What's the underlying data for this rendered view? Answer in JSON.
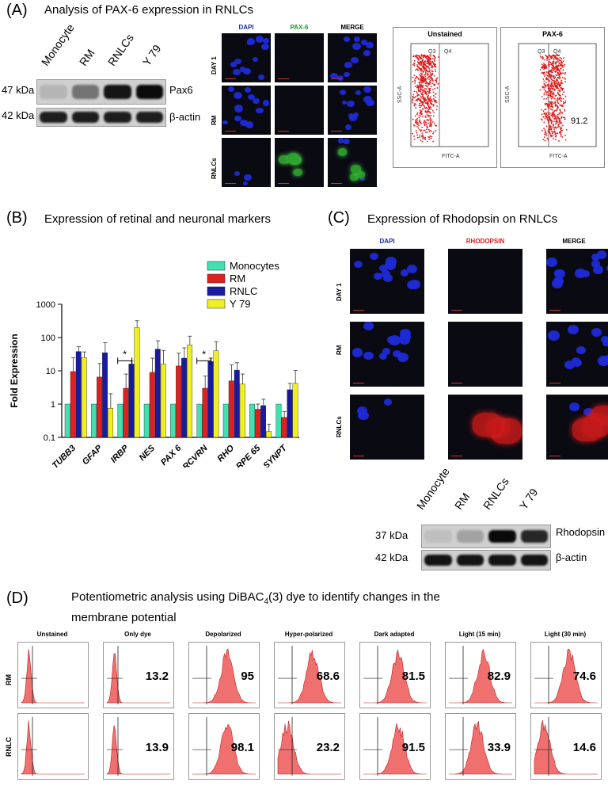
{
  "panel_a": {
    "letter": "(A)",
    "title": "Analysis of PAX-6 expression  in RNLCs",
    "blot_lanes": [
      "Monocyte",
      "RM",
      "RNLCs",
      "Y 79"
    ],
    "blot_rows": [
      {
        "kda": "47 kDa",
        "protein": "Pax6",
        "band_intensity": [
          0.1,
          0.45,
          0.95,
          1.0
        ]
      },
      {
        "kda": "42 kDa",
        "protein": "β-actin",
        "band_intensity": [
          0.9,
          0.9,
          0.9,
          0.9
        ]
      }
    ],
    "micro_cols": [
      "DAPI",
      "PAX-6",
      "MERGE"
    ],
    "micro_col_colors": [
      "#1a2aa8",
      "#1c9b1c",
      "#000000"
    ],
    "micro_rows": [
      "DAY 1",
      "RM",
      "RNLCs"
    ],
    "flow": [
      {
        "title": "Unstained",
        "q_left": "Q3",
        "q_right": "Q4",
        "yaxis": "SSC-A",
        "xaxis": "FITC-A",
        "value": ""
      },
      {
        "title": "PAX-6",
        "q_left": "Q3",
        "q_right": "Q4",
        "yaxis": "SSC-A",
        "xaxis": "FITC-A",
        "value": "91.2"
      }
    ]
  },
  "panel_b": {
    "letter": "(B)",
    "title": "Expression of retinal and neuronal markers"
  },
  "chart_data": {
    "type": "bar",
    "ylabel": "Fold Expression",
    "xlabel": "",
    "yscale": "log",
    "ylim": [
      0.1,
      1000
    ],
    "yticks": [
      "0.1",
      "1",
      "10",
      "100",
      "1000"
    ],
    "legend_position": "top-right",
    "categories": [
      "TUBB3",
      "GFAP",
      "IRBP",
      "NES",
      "PAX 6",
      "RCVRN",
      "RHO",
      "RPE 65",
      "SYNPT"
    ],
    "series": [
      {
        "name": "Monocytes",
        "color": "#40e0b0",
        "values": [
          1,
          1,
          1,
          1,
          1,
          1,
          1,
          1,
          1
        ],
        "err": [
          0,
          0,
          0,
          0,
          0,
          0,
          0,
          0,
          0
        ]
      },
      {
        "name": "RM",
        "color": "#e02020",
        "values": [
          9.5,
          6.5,
          3,
          9,
          14,
          3,
          5,
          0.7,
          0.4
        ],
        "err": [
          15,
          10,
          5,
          15,
          20,
          4,
          10,
          0.3,
          0.2
        ]
      },
      {
        "name": "RNLC",
        "color": "#1a1aa0",
        "values": [
          38,
          35,
          16,
          45,
          24,
          19,
          10.5,
          0.9,
          2.7
        ],
        "err": [
          15,
          35,
          4,
          35,
          25,
          5,
          7,
          0.5,
          1.5
        ]
      },
      {
        "name": "Y 79",
        "color": "#f0f020",
        "values": [
          25,
          0.75,
          200,
          16,
          60,
          40,
          4,
          0.15,
          4.2
        ],
        "err": [
          12,
          1.3,
          120,
          25,
          50,
          35,
          4,
          0.1,
          6
        ]
      }
    ],
    "significance": [
      {
        "category_index": 2,
        "label": "*"
      },
      {
        "category_index": 5,
        "label": "*"
      }
    ]
  },
  "panel_c": {
    "letter": "(C)",
    "title": "Expression of Rhodopsin on RNLCs",
    "micro_cols": [
      "DAPI",
      "RHODOPSIN",
      "MERGE"
    ],
    "micro_col_colors": [
      "#1a2aa8",
      "#e01a1a",
      "#000000"
    ],
    "micro_rows": [
      "DAY 1",
      "RM",
      "RNLCs"
    ],
    "blot_lanes": [
      "Monocyte",
      "RM",
      "RNLCs",
      "Y 79"
    ],
    "blot_rows": [
      {
        "kda": "37 kDa",
        "protein": "Rhodopsin",
        "band_intensity": [
          0.05,
          0.2,
          1.0,
          0.85
        ]
      },
      {
        "kda": "42 kDa",
        "protein": "β-actin",
        "band_intensity": [
          0.95,
          0.95,
          0.95,
          0.95
        ]
      }
    ]
  },
  "panel_d": {
    "letter": "(D)",
    "title_line1": "Potentiometric analysis using DiBAC",
    "title_sub": "4",
    "title_tail": "(3) dye to identify changes in the",
    "title_line2": "membrane potential",
    "columns": [
      "Unstained",
      "Only dye",
      "Depolarized",
      "Hyper-polarized",
      "Dark adapted",
      "Light (15 min)",
      "Light  (30 min)"
    ],
    "rows": [
      {
        "label": "RM",
        "values": [
          "",
          "13.2",
          "95",
          "68.6",
          "81.5",
          "82.9",
          "74.6"
        ]
      },
      {
        "label": "RNLC",
        "values": [
          "",
          "13.9",
          "98.1",
          "23.2",
          "91.5",
          "33.9",
          "14.6"
        ]
      }
    ]
  }
}
